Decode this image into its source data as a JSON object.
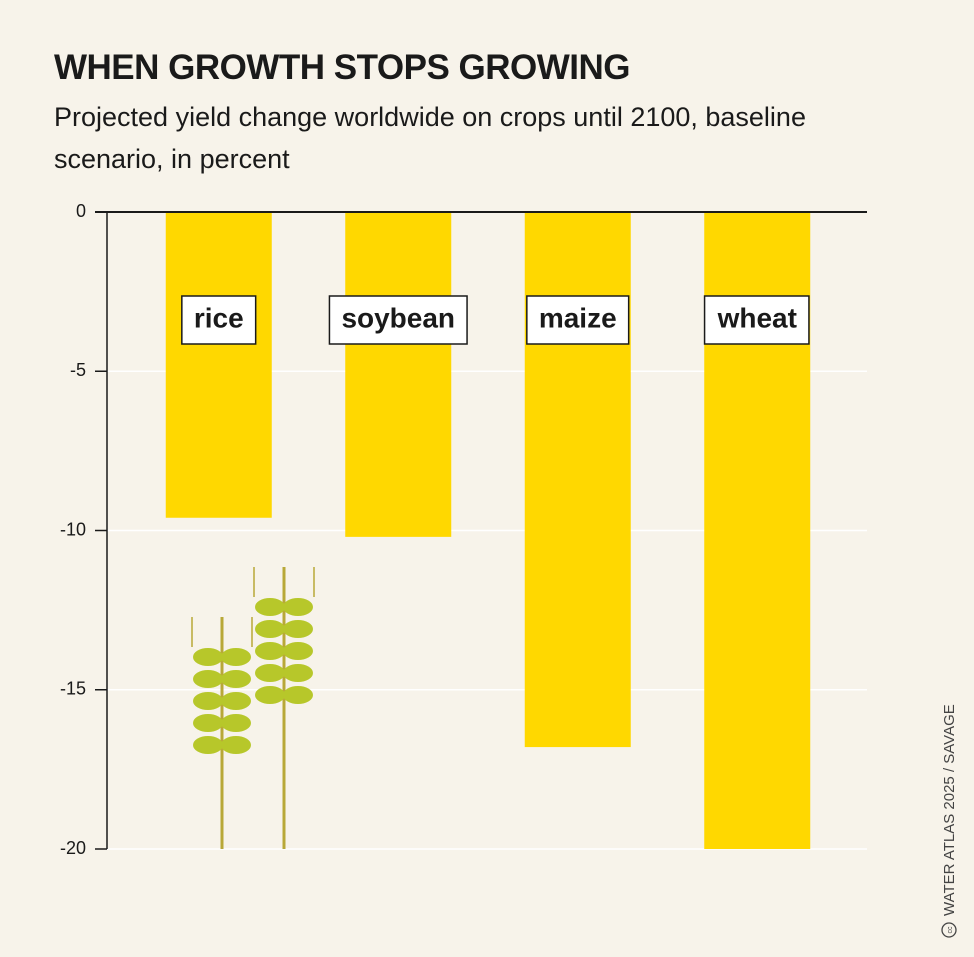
{
  "chart_data": {
    "type": "bar",
    "title": "WHEN GROWTH STOPS GROWING",
    "subtitle": "Projected yield change worldwide on crops until 2100, baseline scenario, in percent",
    "categories": [
      "rice",
      "soybean",
      "maize",
      "wheat"
    ],
    "values": [
      -9.6,
      -10.2,
      -16.8,
      -20
    ],
    "color": "#ffd800",
    "ylim": [
      -20,
      0
    ],
    "yticks": [
      0,
      -5,
      -10,
      -15,
      -20
    ],
    "grid": true,
    "credit": "WATER ATLAS 2025 / SAVAGE"
  }
}
